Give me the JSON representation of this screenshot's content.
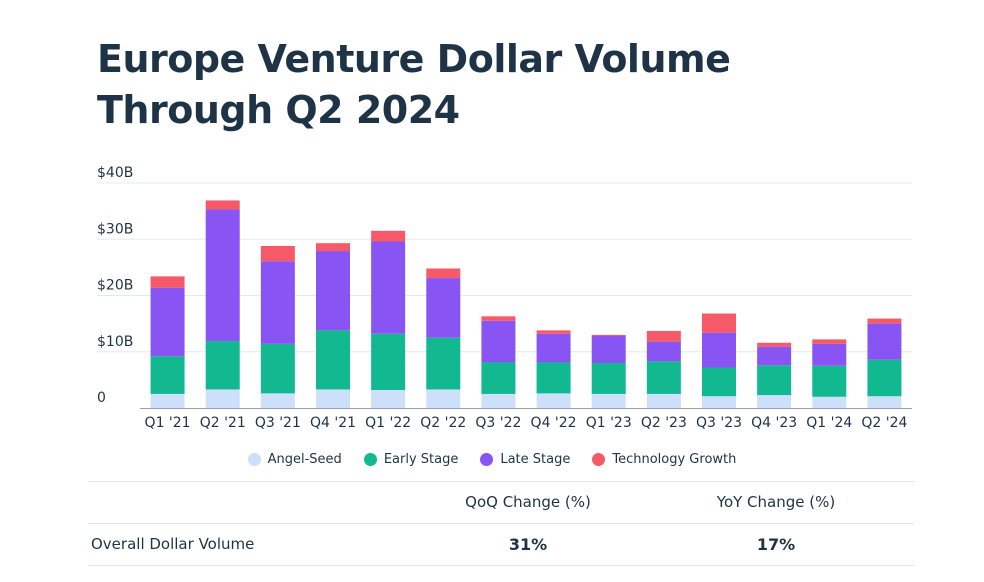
{
  "title": "Europe Venture Dollar Volume Through Q2 2024",
  "colors": {
    "Angel-Seed": "#cde0fb",
    "Early Stage": "#11b890",
    "Late Stage": "#8855f4",
    "Technology Growth": "#f65a68"
  },
  "legend": [
    "Angel-Seed",
    "Early Stage",
    "Late Stage",
    "Technology Growth"
  ],
  "table": {
    "headers": [
      "",
      "QoQ Change (%)",
      "YoY Change (%)"
    ],
    "row": {
      "label": "Overall Dollar Volume",
      "qoq": "31%",
      "yoy": "17%"
    }
  },
  "chart_data": {
    "type": "bar",
    "stacked": true,
    "categories": [
      "Q1 '21",
      "Q2 '21",
      "Q3 '21",
      "Q4 '21",
      "Q1 '22",
      "Q2 '22",
      "Q3 '22",
      "Q4 '22",
      "Q1 '23",
      "Q2 '23",
      "Q3 '23",
      "Q4 '23",
      "Q1 '24",
      "Q2 '24"
    ],
    "series": [
      {
        "name": "Angel-Seed",
        "values": [
          2.5,
          3.3,
          2.6,
          3.3,
          3.2,
          3.3,
          2.5,
          2.6,
          2.5,
          2.5,
          2.1,
          2.3,
          2.0,
          2.1
        ]
      },
      {
        "name": "Early Stage",
        "values": [
          6.7,
          8.6,
          8.8,
          10.5,
          10.0,
          9.2,
          5.6,
          5.5,
          5.5,
          5.8,
          5.1,
          5.3,
          5.5,
          6.5
        ]
      },
      {
        "name": "Late Stage",
        "values": [
          12.2,
          23.4,
          14.7,
          14.1,
          16.4,
          10.6,
          7.4,
          5.1,
          4.8,
          3.5,
          6.2,
          3.3,
          3.9,
          6.4
        ]
      },
      {
        "name": "Technology Growth",
        "values": [
          2.0,
          1.6,
          2.7,
          1.4,
          1.9,
          1.7,
          0.8,
          0.6,
          0.2,
          1.9,
          3.4,
          0.7,
          0.8,
          0.9
        ]
      }
    ],
    "yticks": [
      "0",
      "$10B",
      "$20B",
      "$30B",
      "$40B"
    ],
    "ytick_values": [
      0,
      10,
      20,
      30,
      40
    ],
    "ylim": [
      0,
      40
    ],
    "grid": true
  }
}
